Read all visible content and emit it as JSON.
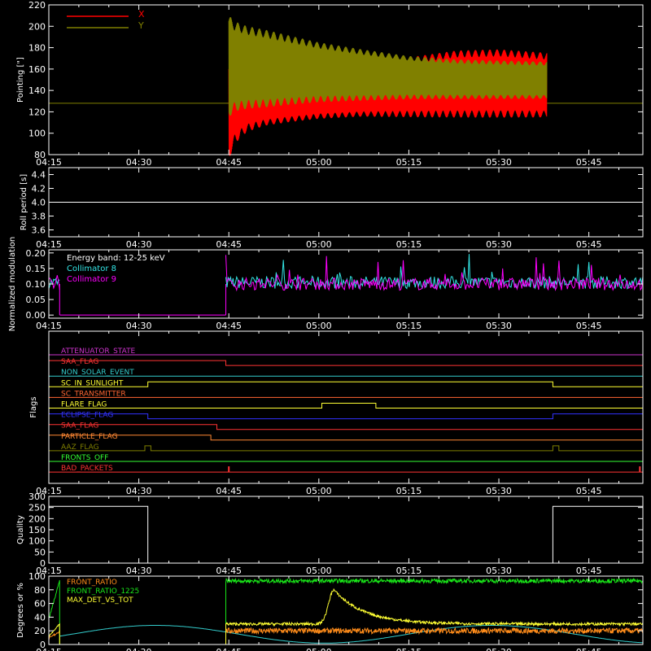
{
  "colors": {
    "background": "#000000",
    "axes": "#ffffff",
    "x_pointing": "#ff0000",
    "y_pointing": "#808000",
    "collimator_8": "#33e6e6",
    "collimator_9": "#ff00ff",
    "front_ratio": "#ff8c1a",
    "front_ratio_1225": "#19e619",
    "max_det_vs_tot": "#ffff33",
    "aspect_curve": "#33cccc"
  },
  "time_axis": {
    "ticks": [
      "04:15",
      "04:30",
      "04:45",
      "05:00",
      "05:15",
      "05:30",
      "05:45"
    ],
    "tick_minutes": [
      0,
      15,
      30,
      45,
      60,
      75,
      90
    ],
    "range_minutes": [
      0,
      99
    ]
  },
  "chart_data": [
    {
      "type": "line",
      "panel": "pointing",
      "ylabel": "Pointing [\"]",
      "ylim": [
        80,
        220
      ],
      "yticks": [
        "80",
        "100",
        "120",
        "140",
        "160",
        "180",
        "200",
        "220"
      ],
      "ytick_values": [
        80,
        100,
        120,
        140,
        160,
        180,
        200,
        220
      ],
      "legend": [
        "X",
        "Y"
      ],
      "series": [
        {
          "name": "X",
          "note_start": 30,
          "note_end": 83,
          "envelope_minutes": [
            30,
            31,
            33,
            36,
            40,
            45,
            52,
            60,
            68,
            75,
            83
          ],
          "upper": [
            160,
            175,
            168,
            160,
            158,
            157,
            160,
            168,
            174,
            175,
            172
          ],
          "lower": [
            80,
            95,
            105,
            110,
            113,
            116,
            118,
            118,
            118,
            118,
            118
          ]
        },
        {
          "name": "Y",
          "envelope_minutes": [
            30,
            31,
            33,
            36,
            40,
            45,
            52,
            60,
            68,
            75,
            83
          ],
          "upper": [
            205,
            200,
            196,
            193,
            188,
            182,
            176,
            170,
            167,
            166,
            165
          ],
          "lower": [
            120,
            125,
            127,
            128,
            130,
            132,
            133,
            134,
            134,
            134,
            134
          ]
        }
      ],
      "baseline": 128
    },
    {
      "type": "line",
      "panel": "roll",
      "ylabel": "Roll period [s]",
      "ylim": [
        3.5,
        4.5
      ],
      "yticks": [
        "3.6",
        "3.8",
        "4.0",
        "4.2",
        "4.4"
      ],
      "ytick_values": [
        3.6,
        3.8,
        4.0,
        4.2,
        4.4
      ],
      "value": 4.0
    },
    {
      "type": "line",
      "panel": "modulation",
      "ylabel": "Normalized modulation",
      "ylim": [
        -0.01,
        0.21
      ],
      "yticks": [
        "0.00",
        "0.05",
        "0.10",
        "0.15",
        "0.20"
      ],
      "ytick_values": [
        0.0,
        0.05,
        0.1,
        0.15,
        0.2
      ],
      "annotation": "Energy band: 12-25 keV",
      "series": [
        {
          "name": "Collimator 8",
          "level": 0.105,
          "spread": 0.02
        },
        {
          "name": "Collimator 9",
          "level": 0.1,
          "spread": 0.02
        }
      ],
      "active_intervals": [
        [
          0,
          1.8
        ],
        [
          29.5,
          99
        ]
      ]
    },
    {
      "type": "line",
      "panel": "flags",
      "ylabel": "Flags",
      "flags": [
        {
          "name": "ATTENUATOR_STATE",
          "color": "#cc33cc",
          "segments": [
            [
              0,
              99,
              0
            ]
          ]
        },
        {
          "name": "SAA_FLAG",
          "color": "#ff3333",
          "segments": [
            [
              0,
              29.5,
              1
            ],
            [
              29.5,
              99,
              0
            ]
          ]
        },
        {
          "name": "NON_SOLAR_EVENT",
          "color": "#33cccc",
          "segments": [
            [
              0,
              99,
              0
            ]
          ]
        },
        {
          "name": "SC_IN_SUNLIGHT",
          "color": "#ffff33",
          "segments": [
            [
              0,
              16.5,
              0
            ],
            [
              16.5,
              84,
              1
            ],
            [
              84,
              99,
              0
            ]
          ]
        },
        {
          "name": "SC_TRANSMITTER",
          "color": "#ff6633",
          "segments": [
            [
              0,
              99,
              0
            ]
          ]
        },
        {
          "name": "FLARE_FLAG",
          "color": "#ffff33",
          "segments": [
            [
              0,
              45.5,
              0
            ],
            [
              45.5,
              54.5,
              1
            ],
            [
              54.5,
              99,
              0
            ]
          ]
        },
        {
          "name": "ECLIPSE_FLAG",
          "color": "#3333ff",
          "segments": [
            [
              0,
              16.5,
              1
            ],
            [
              16.5,
              84,
              0
            ],
            [
              84,
              99,
              1
            ]
          ]
        },
        {
          "name": "SAA_FLAG",
          "color": "#ff3333",
          "segments": [
            [
              0,
              28,
              1
            ],
            [
              28,
              99,
              0
            ]
          ]
        },
        {
          "name": "PARTICLE_FLAG",
          "color": "#ff8833",
          "segments": [
            [
              0,
              27,
              1
            ],
            [
              27,
              99,
              0
            ]
          ]
        },
        {
          "name": "AAZ_FLAG",
          "color": "#808000",
          "segments": [
            [
              0,
              16,
              0
            ],
            [
              16,
              17,
              1
            ],
            [
              17,
              84,
              0
            ],
            [
              84,
              85,
              1
            ],
            [
              85,
              99,
              0
            ]
          ]
        },
        {
          "name": "FRONTS_OFF",
          "color": "#33ff33",
          "segments": [
            [
              0,
              99,
              0
            ]
          ]
        },
        {
          "name": "BAD_PACKETS",
          "color": "#ff3333",
          "segments": [
            [
              0,
              99,
              0
            ]
          ],
          "spikes": [
            30,
            98.5
          ]
        }
      ]
    },
    {
      "type": "line",
      "panel": "quality",
      "ylabel": "Quality",
      "ylim": [
        0,
        300
      ],
      "yticks": [
        "0",
        "50",
        "100",
        "150",
        "200",
        "250",
        "300"
      ],
      "ytick_values": [
        0,
        50,
        100,
        150,
        200,
        250,
        300
      ],
      "steps": [
        [
          0,
          16.5,
          255
        ],
        [
          16.5,
          84,
          0
        ],
        [
          84,
          99,
          255
        ]
      ]
    },
    {
      "type": "line",
      "panel": "ratios",
      "ylabel": "Degrees or %",
      "ylim": [
        0,
        100
      ],
      "yticks": [
        "0",
        "20",
        "40",
        "60",
        "80",
        "100"
      ],
      "ytick_values": [
        0,
        20,
        40,
        60,
        80,
        100
      ],
      "legend": [
        "FRONT_RATIO",
        "FRONT_RATIO_1225",
        "MAX_DET_VS_TOT"
      ],
      "series": [
        {
          "name": "FRONT_RATIO",
          "level": 20,
          "noise": 4
        },
        {
          "name": "FRONT_RATIO_1225",
          "level": 93,
          "noise": 3
        },
        {
          "name": "MAX_DET_VS_TOT",
          "level": 30,
          "noise": 2,
          "peak_minute": 47.5,
          "peak_value": 80
        }
      ]
    }
  ]
}
